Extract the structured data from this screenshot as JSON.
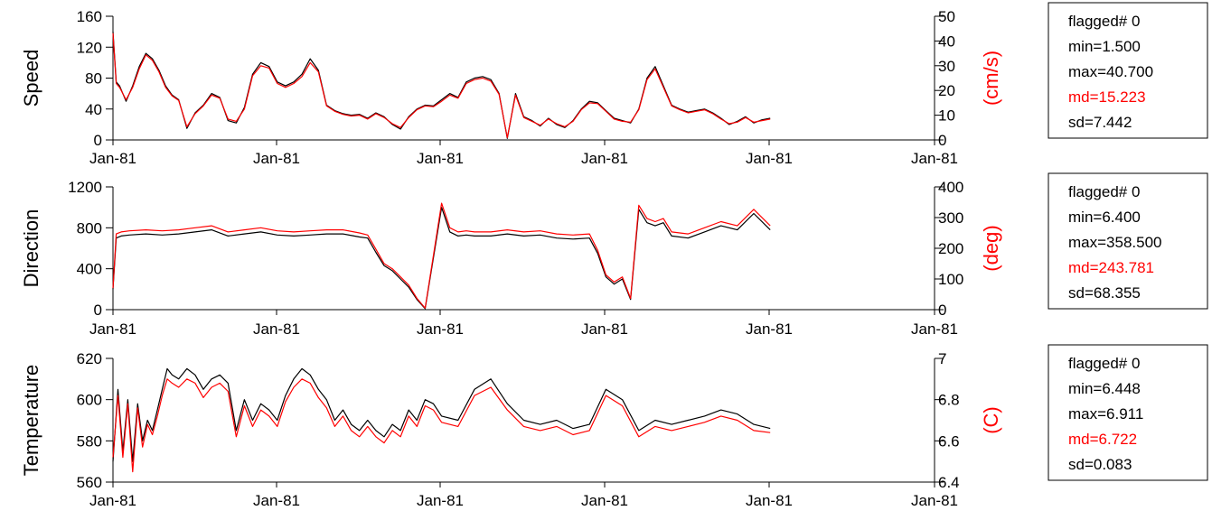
{
  "colors": {
    "primary": "#000000",
    "secondary": "#ff0000"
  },
  "chart_data": [
    {
      "type": "line",
      "ylabel": "Speed",
      "ylabel_right": "(cm/s)",
      "x_tick_labels": [
        "Jan-81",
        "Jan-81",
        "Jan-81",
        "Jan-81",
        "Jan-81",
        "Jan-81"
      ],
      "y_ticks": [
        0,
        40,
        80,
        120,
        160
      ],
      "y_right_ticks": [
        0,
        10,
        20,
        30,
        40,
        50
      ],
      "ylim": [
        0,
        160
      ],
      "ylim_right": [
        0,
        50
      ],
      "xlim": [
        0,
        500
      ],
      "stats": {
        "flagged": "flagged# 0",
        "min": "min=1.500",
        "max": "max=40.700",
        "md": "md=15.223",
        "sd": "sd=7.442"
      },
      "series": [
        {
          "color": "#000000",
          "x": [
            0,
            2,
            4,
            8,
            12,
            16,
            20,
            24,
            28,
            32,
            36,
            40,
            45,
            50,
            55,
            60,
            65,
            70,
            75,
            80,
            85,
            90,
            95,
            100,
            105,
            110,
            115,
            120,
            125,
            130,
            135,
            140,
            145,
            150,
            155,
            160,
            165,
            170,
            175,
            180,
            185,
            190,
            195,
            200,
            205,
            210,
            215,
            220,
            225,
            230,
            235,
            240,
            245,
            250,
            255,
            260,
            265,
            270,
            275,
            280,
            285,
            290,
            295,
            300,
            305,
            310,
            315,
            320,
            325,
            330,
            335,
            340,
            345,
            350,
            355,
            360,
            365,
            370,
            375,
            380,
            385,
            390,
            395,
            400
          ],
          "y": [
            140,
            75,
            70,
            50,
            70,
            95,
            112,
            105,
            90,
            70,
            58,
            52,
            15,
            35,
            45,
            60,
            55,
            25,
            22,
            42,
            85,
            100,
            95,
            75,
            70,
            75,
            85,
            105,
            90,
            45,
            38,
            34,
            32,
            33,
            28,
            35,
            30,
            20,
            14,
            30,
            40,
            45,
            44,
            52,
            60,
            55,
            75,
            80,
            82,
            78,
            60,
            2,
            60,
            30,
            25,
            18,
            28,
            20,
            16,
            25,
            40,
            50,
            48,
            38,
            28,
            25,
            22,
            40,
            80,
            95,
            70,
            45,
            40,
            36,
            38,
            40,
            35,
            28,
            20,
            24,
            30,
            22,
            26,
            28
          ]
        },
        {
          "color": "#ff0000",
          "x": [
            0,
            2,
            4,
            8,
            12,
            16,
            20,
            24,
            28,
            32,
            36,
            40,
            45,
            50,
            55,
            60,
            65,
            70,
            75,
            80,
            85,
            90,
            95,
            100,
            105,
            110,
            115,
            120,
            125,
            130,
            135,
            140,
            145,
            150,
            155,
            160,
            165,
            170,
            175,
            180,
            185,
            190,
            195,
            200,
            205,
            210,
            215,
            220,
            225,
            230,
            235,
            240,
            245,
            250,
            255,
            260,
            265,
            270,
            275,
            280,
            285,
            290,
            295,
            300,
            305,
            310,
            315,
            320,
            325,
            330,
            335,
            340,
            345,
            350,
            355,
            360,
            365,
            370,
            375,
            380,
            385,
            390,
            395,
            400
          ],
          "y": [
            138,
            73,
            68,
            52,
            68,
            92,
            110,
            103,
            88,
            68,
            57,
            51,
            17,
            34,
            44,
            58,
            54,
            27,
            24,
            40,
            83,
            96,
            93,
            73,
            68,
            73,
            82,
            100,
            88,
            44,
            37,
            33,
            31,
            32,
            27,
            34,
            29,
            21,
            16,
            29,
            39,
            44,
            43,
            50,
            58,
            54,
            73,
            78,
            80,
            76,
            59,
            3,
            58,
            29,
            24,
            19,
            27,
            21,
            17,
            24,
            39,
            48,
            47,
            37,
            27,
            24,
            23,
            39,
            78,
            92,
            68,
            44,
            39,
            35,
            37,
            39,
            34,
            27,
            21,
            23,
            29,
            23,
            25,
            27
          ]
        }
      ]
    },
    {
      "type": "line",
      "ylabel": "Direction",
      "ylabel_right": "(deg)",
      "x_tick_labels": [
        "Jan-81",
        "Jan-81",
        "Jan-81",
        "Jan-81",
        "Jan-81",
        "Jan-81"
      ],
      "y_ticks": [
        0,
        400,
        800,
        1200
      ],
      "y_right_ticks": [
        0,
        100,
        200,
        300,
        400
      ],
      "ylim": [
        0,
        1200
      ],
      "ylim_right": [
        0,
        400
      ],
      "xlim": [
        0,
        500
      ],
      "stats": {
        "flagged": "flagged# 0",
        "min": "min=6.400",
        "max": "max=358.500",
        "md": "md=243.781",
        "sd": "sd=68.355"
      },
      "series": [
        {
          "color": "#000000",
          "x": [
            0,
            2,
            5,
            10,
            20,
            30,
            40,
            50,
            60,
            70,
            80,
            90,
            100,
            110,
            120,
            130,
            140,
            150,
            155,
            160,
            165,
            170,
            175,
            180,
            185,
            190,
            200,
            205,
            210,
            215,
            220,
            230,
            240,
            250,
            260,
            270,
            280,
            290,
            295,
            300,
            305,
            310,
            315,
            320,
            325,
            330,
            335,
            340,
            350,
            360,
            370,
            380,
            390,
            400
          ],
          "y": [
            200,
            700,
            720,
            730,
            740,
            730,
            740,
            760,
            780,
            720,
            740,
            760,
            730,
            720,
            730,
            740,
            740,
            710,
            700,
            560,
            430,
            380,
            300,
            220,
            100,
            10,
            1000,
            760,
            720,
            730,
            720,
            720,
            740,
            720,
            730,
            700,
            690,
            700,
            550,
            320,
            250,
            300,
            100,
            980,
            850,
            820,
            850,
            720,
            700,
            760,
            820,
            780,
            940,
            780
          ]
        },
        {
          "color": "#ff0000",
          "x": [
            0,
            2,
            5,
            10,
            20,
            30,
            40,
            50,
            60,
            70,
            80,
            90,
            100,
            110,
            120,
            130,
            140,
            150,
            155,
            160,
            165,
            170,
            175,
            180,
            185,
            190,
            200,
            205,
            210,
            215,
            220,
            230,
            240,
            250,
            260,
            270,
            280,
            290,
            295,
            300,
            305,
            310,
            315,
            320,
            325,
            330,
            335,
            340,
            350,
            360,
            370,
            380,
            390,
            400
          ],
          "y": [
            210,
            740,
            760,
            770,
            780,
            770,
            780,
            800,
            820,
            760,
            780,
            800,
            770,
            760,
            770,
            780,
            780,
            750,
            730,
            590,
            450,
            400,
            320,
            240,
            110,
            15,
            1040,
            800,
            760,
            770,
            760,
            760,
            780,
            760,
            770,
            740,
            730,
            740,
            580,
            340,
            270,
            320,
            110,
            1020,
            890,
            860,
            890,
            760,
            740,
            800,
            860,
            820,
            980,
            820
          ]
        }
      ]
    },
    {
      "type": "line",
      "ylabel": "Temperature",
      "ylabel_right": "(C)",
      "x_tick_labels": [
        "Jan-81",
        "Jan-81",
        "Jan-81",
        "Jan-81",
        "Jan-81",
        "Jan-81"
      ],
      "y_ticks": [
        560,
        580,
        600,
        620
      ],
      "y_right_ticks": [
        6.4,
        6.6,
        6.8,
        7
      ],
      "ylim": [
        560,
        620
      ],
      "ylim_right": [
        6.4,
        7
      ],
      "xlim": [
        0,
        500
      ],
      "stats": {
        "flagged": "flagged# 0",
        "min": "min=6.448",
        "max": "max=6.911",
        "md": "md=6.722",
        "sd": "sd=0.083"
      },
      "series": [
        {
          "color": "#000000",
          "x": [
            0,
            3,
            6,
            9,
            12,
            15,
            18,
            21,
            24,
            27,
            30,
            33,
            36,
            40,
            45,
            50,
            55,
            60,
            65,
            70,
            75,
            80,
            85,
            90,
            95,
            100,
            105,
            110,
            115,
            120,
            125,
            130,
            135,
            140,
            145,
            150,
            155,
            160,
            165,
            170,
            175,
            180,
            185,
            190,
            195,
            200,
            210,
            220,
            230,
            240,
            250,
            260,
            270,
            280,
            290,
            300,
            310,
            320,
            330,
            340,
            350,
            360,
            370,
            380,
            390,
            400
          ],
          "y": [
            570,
            605,
            575,
            600,
            570,
            598,
            580,
            590,
            585,
            595,
            605,
            615,
            612,
            610,
            615,
            612,
            605,
            610,
            612,
            608,
            585,
            600,
            590,
            598,
            595,
            590,
            602,
            610,
            615,
            612,
            605,
            600,
            590,
            595,
            588,
            585,
            590,
            585,
            582,
            588,
            585,
            595,
            590,
            600,
            598,
            592,
            590,
            605,
            610,
            598,
            590,
            588,
            590,
            586,
            588,
            605,
            600,
            585,
            590,
            588,
            590,
            592,
            595,
            593,
            588,
            586
          ]
        },
        {
          "color": "#ff0000",
          "x": [
            0,
            3,
            6,
            9,
            12,
            15,
            18,
            21,
            24,
            27,
            30,
            33,
            36,
            40,
            45,
            50,
            55,
            60,
            65,
            70,
            75,
            80,
            85,
            90,
            95,
            100,
            105,
            110,
            115,
            120,
            125,
            130,
            135,
            140,
            145,
            150,
            155,
            160,
            165,
            170,
            175,
            180,
            185,
            190,
            195,
            200,
            210,
            220,
            230,
            240,
            250,
            260,
            270,
            280,
            290,
            300,
            310,
            320,
            330,
            340,
            350,
            360,
            370,
            380,
            390,
            400
          ],
          "y": [
            572,
            602,
            572,
            598,
            565,
            596,
            577,
            588,
            583,
            592,
            602,
            610,
            608,
            606,
            610,
            608,
            601,
            606,
            608,
            604,
            582,
            597,
            587,
            595,
            592,
            587,
            599,
            606,
            610,
            608,
            601,
            596,
            587,
            592,
            585,
            582,
            587,
            582,
            579,
            585,
            582,
            592,
            587,
            597,
            595,
            589,
            587,
            602,
            606,
            595,
            587,
            585,
            587,
            583,
            585,
            602,
            597,
            582,
            587,
            585,
            587,
            589,
            592,
            590,
            585,
            584
          ]
        }
      ]
    }
  ]
}
